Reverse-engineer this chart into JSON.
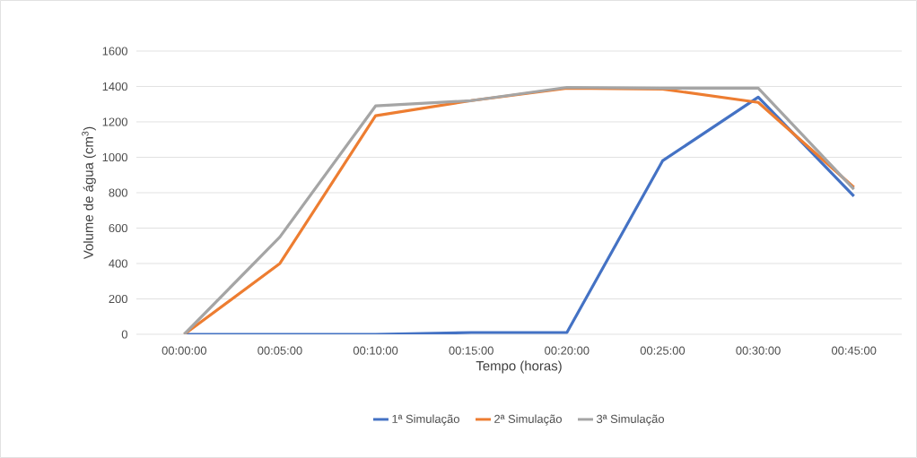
{
  "chart_data": {
    "type": "line",
    "xlabel": "Tempo (horas)",
    "ylabel": "Volume de água (cm$^{3}$)",
    "categories": [
      "00:00:00",
      "00:05:00",
      "00:10:00",
      "00:15:00",
      "00:20:00",
      "00:25:00",
      "00:30:00",
      "00:45:00"
    ],
    "series": [
      {
        "name": "1ª Simulação",
        "color": "#4472c4",
        "values": [
          0,
          0,
          0,
          10,
          10,
          980,
          1340,
          780
        ]
      },
      {
        "name": "2ª Simulação",
        "color": "#ed7d31",
        "values": [
          0,
          400,
          1235,
          1320,
          1390,
          1385,
          1310,
          830
        ]
      },
      {
        "name": "3ª Simulação",
        "color": "#a5a5a5",
        "values": [
          0,
          550,
          1290,
          1320,
          1395,
          1390,
          1390,
          820
        ]
      }
    ],
    "ylim": [
      0,
      1600
    ],
    "yticks": [
      0,
      200,
      400,
      600,
      800,
      1000,
      1200,
      1400,
      1600
    ],
    "grid": "y",
    "legend": "bottom",
    "marker": "none",
    "line_style": "solid"
  }
}
